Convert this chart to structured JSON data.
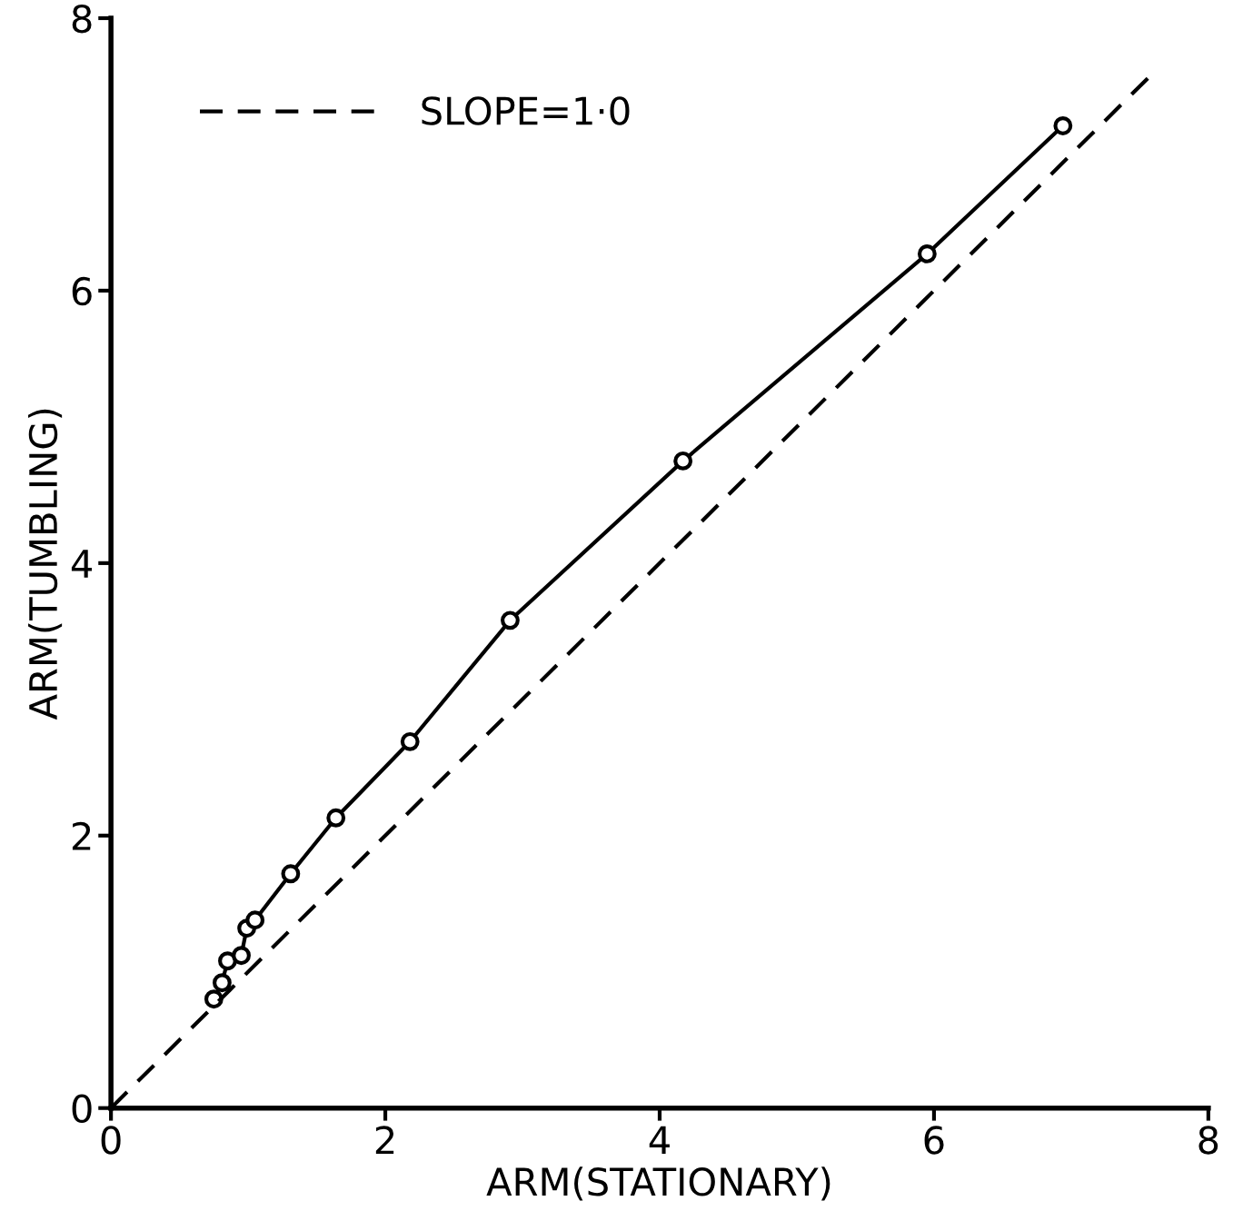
{
  "chart_data": {
    "type": "line",
    "xlabel": "ARM(STATIONARY)",
    "ylabel": "ARM(TUMBLING)",
    "xlim": [
      0,
      8
    ],
    "ylim": [
      0,
      8
    ],
    "xticks": [
      0,
      2,
      4,
      6,
      8
    ],
    "yticks": [
      0,
      2,
      4,
      6,
      8
    ],
    "grid": false,
    "legend": "top left",
    "series": [
      {
        "color": "#000000",
        "marker": "circle",
        "line_style": "solid",
        "x": [
          0.75,
          0.81,
          0.85,
          0.95,
          0.99,
          1.05,
          1.31,
          1.64,
          2.18,
          2.91,
          4.17,
          5.95,
          6.94
        ],
        "values": [
          0.8,
          0.92,
          1.08,
          1.12,
          1.32,
          1.38,
          1.72,
          2.13,
          2.69,
          3.58,
          4.75,
          6.27,
          7.21
        ]
      },
      {
        "name": "SLOPE=1·0",
        "color": "#000000",
        "marker": "none",
        "line_style": "dashed",
        "x": [
          0,
          7.6
        ],
        "values": [
          0,
          7.6
        ]
      }
    ]
  }
}
